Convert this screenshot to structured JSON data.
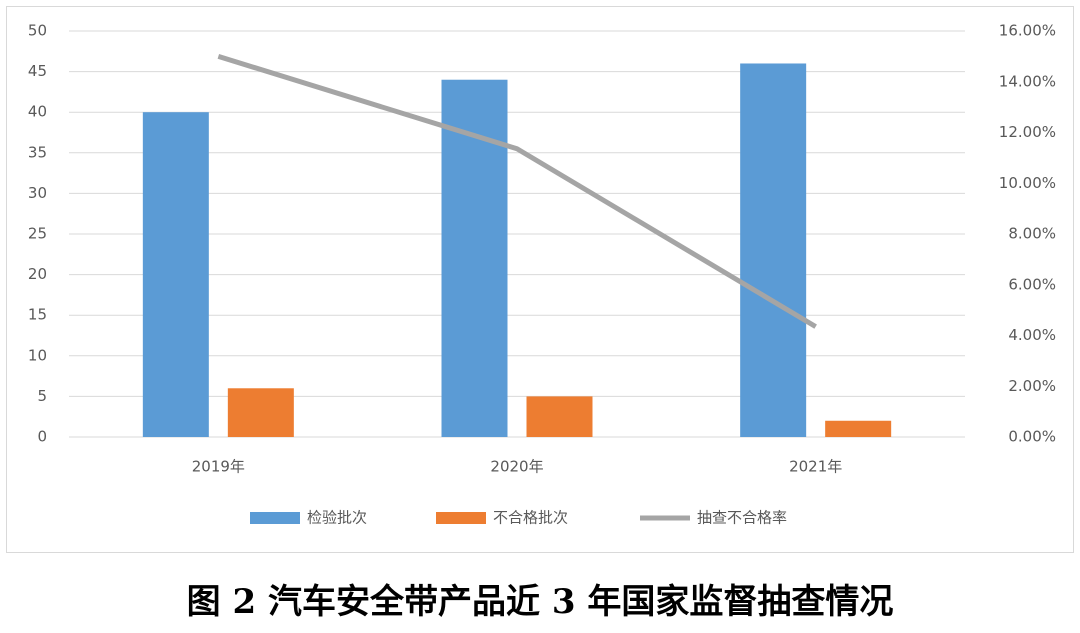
{
  "chart_data": {
    "type": "bar",
    "title": "图 2  汽车安全带产品近 3 年国家监督抽查情况",
    "categories": [
      "2019年",
      "2020年",
      "2021年"
    ],
    "series": [
      {
        "name": "检验批次",
        "color": "#5b9bd5",
        "values": [
          40,
          44,
          46
        ]
      },
      {
        "name": "不合格批次",
        "color": "#ed7d31",
        "values": [
          6,
          5,
          2
        ]
      },
      {
        "name": "抽查不合格率",
        "color": "#a5a5a5",
        "type": "line",
        "axis": "y2",
        "values": [
          15,
          11.36,
          4.35
        ]
      }
    ],
    "ylim": [
      0,
      50
    ],
    "yticks": [
      0,
      5,
      10,
      15,
      20,
      25,
      30,
      35,
      40,
      45,
      50
    ],
    "y2lim": [
      0,
      16
    ],
    "y2ticks": [
      {
        "value": 0,
        "label": "0.00%"
      },
      {
        "value": 2,
        "label": "2.00%"
      },
      {
        "value": 4,
        "label": "4.00%"
      },
      {
        "value": 6,
        "label": "6.00%"
      },
      {
        "value": 8,
        "label": "8.00%"
      },
      {
        "value": 10,
        "label": "10.00%"
      },
      {
        "value": 12,
        "label": "12.00%"
      },
      {
        "value": 14,
        "label": "14.00%"
      },
      {
        "value": 16,
        "label": "16.00%"
      }
    ],
    "grid": true,
    "legend": "bottom"
  }
}
